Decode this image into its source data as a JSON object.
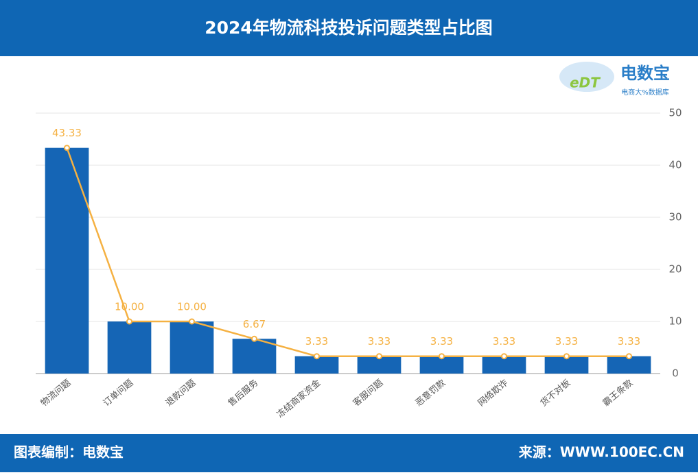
{
  "chart_data": {
    "type": "bar",
    "title": "2024年物流科技投诉问题类型占比图",
    "categories": [
      "物流问题",
      "订单问题",
      "退款问题",
      "售后服务",
      "冻结商家资金",
      "客服问题",
      "恶意罚款",
      "网络欺诈",
      "货不对板",
      "霸王条款"
    ],
    "values": [
      43.33,
      10,
      10,
      6.67,
      3.33,
      3.33,
      3.33,
      3.33,
      3.33,
      3.33
    ],
    "value_labels": [
      "43.33",
      "10.00",
      "10.00",
      "6.67",
      "3.33",
      "3.33",
      "3.33",
      "3.33",
      "3.33",
      "3.33"
    ],
    "color": "#1565b5",
    "line": true,
    "line_color": "#f5b142",
    "ylim": [
      0,
      50
    ],
    "yticks": [
      0,
      10,
      20,
      30,
      40,
      50
    ],
    "grid": true,
    "y_axis_side": "right"
  },
  "logo": {
    "name": "电数宝",
    "mark": "eDT",
    "tagline": "电商大%数据库"
  },
  "footer": {
    "left": "图表编制：电数宝",
    "right": "来源：WWW.100EC.CN"
  }
}
